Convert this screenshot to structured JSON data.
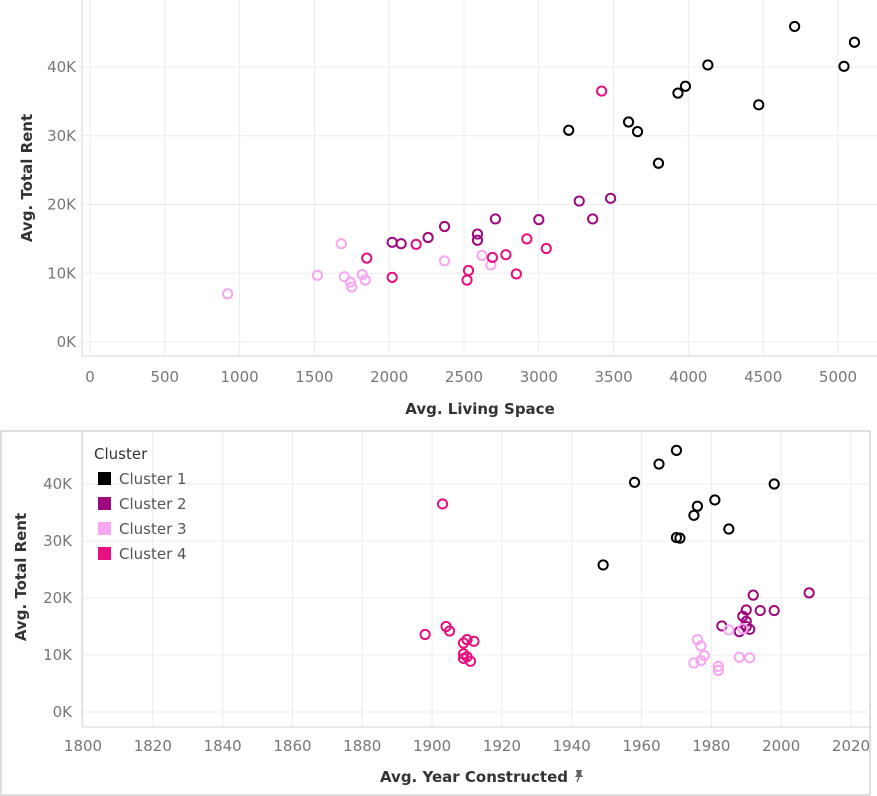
{
  "chart_data": [
    {
      "type": "scatter",
      "xlabel": "Avg. Living Space",
      "ylabel": "Avg. Total Rent",
      "xlim": [
        0,
        5200
      ],
      "ylim": [
        -2000,
        48000
      ],
      "x_ticks": [
        0,
        500,
        1000,
        1500,
        2000,
        2500,
        3000,
        3500,
        4000,
        4500,
        5000
      ],
      "x_tick_labels": [
        "0",
        "500",
        "1000",
        "1500",
        "2000",
        "2500",
        "3000",
        "3500",
        "4000",
        "4500",
        "5000"
      ],
      "y_ticks": [
        0,
        10000,
        20000,
        30000,
        40000
      ],
      "y_tick_labels": [
        "0K",
        "10K",
        "20K",
        "30K",
        "40K"
      ],
      "grid": true,
      "series": [
        {
          "name": "Cluster 1",
          "color": "#000000",
          "points": [
            [
              3200,
              30800
            ],
            [
              3600,
              32000
            ],
            [
              3660,
              30600
            ],
            [
              3800,
              26000
            ],
            [
              3930,
              36200
            ],
            [
              3980,
              37200
            ],
            [
              4130,
              40300
            ],
            [
              4470,
              34500
            ],
            [
              4710,
              45900
            ],
            [
              5040,
              40100
            ],
            [
              5110,
              43600
            ]
          ]
        },
        {
          "name": "Cluster 2",
          "color": "#9e0a7e",
          "points": [
            [
              2020,
              14500
            ],
            [
              2080,
              14300
            ],
            [
              2260,
              15200
            ],
            [
              2370,
              16800
            ],
            [
              2590,
              15700
            ],
            [
              2590,
              14800
            ],
            [
              2710,
              17900
            ],
            [
              3000,
              17800
            ],
            [
              3270,
              20500
            ],
            [
              3360,
              17900
            ],
            [
              3480,
              20900
            ]
          ]
        },
        {
          "name": "Cluster 3",
          "color": "#f7a6f2",
          "points": [
            [
              920,
              7000
            ],
            [
              1520,
              9700
            ],
            [
              1680,
              14300
            ],
            [
              1700,
              9500
            ],
            [
              1740,
              8700
            ],
            [
              1750,
              8000
            ],
            [
              1820,
              9800
            ],
            [
              1840,
              9000
            ],
            [
              2370,
              11800
            ],
            [
              2620,
              12600
            ],
            [
              2680,
              11200
            ]
          ]
        },
        {
          "name": "Cluster 4",
          "color": "#e6117f",
          "points": [
            [
              1850,
              12200
            ],
            [
              2020,
              9400
            ],
            [
              2180,
              14200
            ],
            [
              2520,
              9000
            ],
            [
              2530,
              10400
            ],
            [
              2690,
              12300
            ],
            [
              2780,
              12700
            ],
            [
              2850,
              9900
            ],
            [
              2920,
              15000
            ],
            [
              3050,
              13600
            ],
            [
              3420,
              36500
            ]
          ]
        }
      ]
    },
    {
      "type": "scatter",
      "xlabel": "Avg. Year Constructed",
      "ylabel": "Avg. Total Rent",
      "xlim": [
        1790,
        2022
      ],
      "ylim": [
        -2000,
        48000
      ],
      "x_ticks": [
        1800,
        1820,
        1840,
        1860,
        1880,
        1900,
        1920,
        1940,
        1960,
        1980,
        2000,
        2020
      ],
      "x_tick_labels": [
        "1800",
        "1820",
        "1840",
        "1860",
        "1880",
        "1900",
        "1920",
        "1940",
        "1960",
        "1980",
        "2000",
        "2020"
      ],
      "y_ticks": [
        0,
        10000,
        20000,
        30000,
        40000
      ],
      "y_tick_labels": [
        "0K",
        "10K",
        "20K",
        "30K",
        "40K"
      ],
      "grid": true,
      "legend": {
        "title": "Cluster",
        "position": "top-left",
        "items": [
          {
            "label": "Cluster 1",
            "color": "#000000"
          },
          {
            "label": "Cluster 2",
            "color": "#9e0a7e"
          },
          {
            "label": "Cluster 3",
            "color": "#f7a6f2"
          },
          {
            "label": "Cluster 4",
            "color": "#e6117f"
          }
        ]
      },
      "series": [
        {
          "name": "Cluster 1",
          "color": "#000000",
          "points": [
            [
              1949,
              25800
            ],
            [
              1958,
              40300
            ],
            [
              1965,
              43500
            ],
            [
              1970,
              45900
            ],
            [
              1970,
              30600
            ],
            [
              1971,
              30500
            ],
            [
              1975,
              34500
            ],
            [
              1976,
              36100
            ],
            [
              1981,
              37200
            ],
            [
              1985,
              32100
            ],
            [
              1998,
              40000
            ]
          ]
        },
        {
          "name": "Cluster 2",
          "color": "#9e0a7e",
          "points": [
            [
              1983,
              15100
            ],
            [
              1988,
              14100
            ],
            [
              1989,
              16800
            ],
            [
              1990,
              17900
            ],
            [
              1990,
              15900
            ],
            [
              1990,
              15000
            ],
            [
              1991,
              14500
            ],
            [
              1992,
              20500
            ],
            [
              1994,
              17800
            ],
            [
              1998,
              17800
            ],
            [
              2008,
              20900
            ]
          ]
        },
        {
          "name": "Cluster 3",
          "color": "#f7a6f2",
          "points": [
            [
              1975,
              8600
            ],
            [
              1976,
              12700
            ],
            [
              1977,
              11600
            ],
            [
              1977,
              9000
            ],
            [
              1978,
              9900
            ],
            [
              1982,
              8000
            ],
            [
              1982,
              7300
            ],
            [
              1985,
              14400
            ],
            [
              1988,
              9600
            ],
            [
              1991,
              9500
            ],
            [
              1989,
              14600
            ]
          ]
        },
        {
          "name": "Cluster 4",
          "color": "#e6117f",
          "points": [
            [
              1898,
              13600
            ],
            [
              1903,
              36500
            ],
            [
              1904,
              15000
            ],
            [
              1905,
              14200
            ],
            [
              1909,
              9400
            ],
            [
              1909,
              10200
            ],
            [
              1909,
              12100
            ],
            [
              1910,
              12700
            ],
            [
              1910,
              9700
            ],
            [
              1911,
              8900
            ],
            [
              1912,
              12400
            ]
          ]
        }
      ]
    }
  ]
}
